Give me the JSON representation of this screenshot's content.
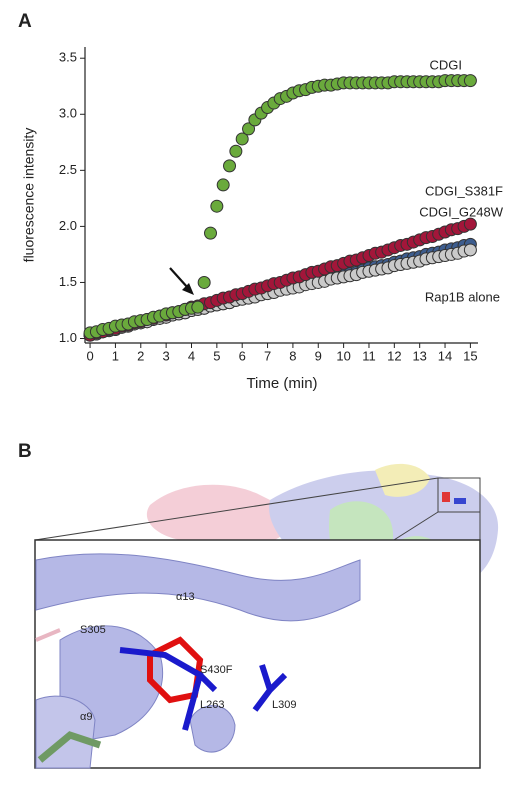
{
  "chart_data": {
    "type": "scatter",
    "panel_label": "A",
    "xlabel": "Time (min)",
    "ylabel": "fluorescence intensity",
    "x": [
      0,
      0.25,
      0.5,
      0.75,
      1,
      1.25,
      1.5,
      1.75,
      2,
      2.25,
      2.5,
      2.75,
      3,
      3.25,
      3.5,
      3.75,
      4,
      4.25,
      4.5,
      4.75,
      5,
      5.25,
      5.5,
      5.75,
      6,
      6.25,
      6.5,
      6.75,
      7,
      7.25,
      7.5,
      7.75,
      8,
      8.25,
      8.5,
      8.75,
      9,
      9.25,
      9.5,
      9.75,
      10,
      10.25,
      10.5,
      10.75,
      11,
      11.25,
      11.5,
      11.75,
      12,
      12.25,
      12.5,
      12.75,
      13,
      13.25,
      13.5,
      13.75,
      14,
      14.25,
      14.5,
      14.75,
      15
    ],
    "series": [
      {
        "name": "CDGI_G248W",
        "color": "#3d5d8f",
        "values": [
          1.03,
          1.04,
          1.06,
          1.07,
          1.08,
          1.1,
          1.11,
          1.13,
          1.14,
          1.15,
          1.17,
          1.18,
          1.19,
          1.21,
          1.22,
          1.23,
          1.25,
          1.26,
          1.27,
          1.29,
          1.3,
          1.31,
          1.32,
          1.34,
          1.36,
          1.37,
          1.38,
          1.4,
          1.41,
          1.42,
          1.44,
          1.45,
          1.46,
          1.47,
          1.49,
          1.5,
          1.52,
          1.53,
          1.55,
          1.56,
          1.57,
          1.58,
          1.59,
          1.61,
          1.63,
          1.64,
          1.65,
          1.66,
          1.68,
          1.69,
          1.71,
          1.72,
          1.73,
          1.75,
          1.76,
          1.77,
          1.79,
          1.8,
          1.81,
          1.83,
          1.84
        ]
      },
      {
        "name": "Rap1B alone",
        "color": "#cacaca",
        "values": [
          1.03,
          1.04,
          1.06,
          1.07,
          1.08,
          1.1,
          1.11,
          1.13,
          1.14,
          1.15,
          1.17,
          1.18,
          1.19,
          1.21,
          1.22,
          1.23,
          1.25,
          1.26,
          1.27,
          1.29,
          1.3,
          1.31,
          1.32,
          1.34,
          1.35,
          1.36,
          1.37,
          1.39,
          1.4,
          1.41,
          1.43,
          1.44,
          1.45,
          1.46,
          1.48,
          1.49,
          1.5,
          1.51,
          1.53,
          1.54,
          1.55,
          1.56,
          1.57,
          1.59,
          1.6,
          1.61,
          1.62,
          1.63,
          1.65,
          1.66,
          1.67,
          1.68,
          1.69,
          1.71,
          1.72,
          1.73,
          1.74,
          1.75,
          1.76,
          1.78,
          1.79
        ]
      },
      {
        "name": "CDGI_S381F",
        "color": "#a3163a",
        "values": [
          1.03,
          1.05,
          1.06,
          1.08,
          1.09,
          1.11,
          1.12,
          1.14,
          1.15,
          1.17,
          1.18,
          1.2,
          1.21,
          1.23,
          1.24,
          1.26,
          1.28,
          1.29,
          1.31,
          1.32,
          1.34,
          1.36,
          1.37,
          1.39,
          1.4,
          1.42,
          1.44,
          1.45,
          1.47,
          1.49,
          1.5,
          1.52,
          1.54,
          1.55,
          1.57,
          1.59,
          1.6,
          1.62,
          1.64,
          1.65,
          1.67,
          1.69,
          1.7,
          1.72,
          1.74,
          1.76,
          1.77,
          1.79,
          1.81,
          1.83,
          1.84,
          1.86,
          1.88,
          1.9,
          1.91,
          1.93,
          1.95,
          1.97,
          1.98,
          2.0,
          2.02
        ]
      },
      {
        "name": "CDGI",
        "color": "#6aaa3c",
        "values": [
          1.05,
          1.06,
          1.08,
          1.09,
          1.11,
          1.12,
          1.13,
          1.15,
          1.16,
          1.17,
          1.19,
          1.2,
          1.22,
          1.23,
          1.24,
          1.26,
          1.27,
          1.28,
          1.5,
          1.94,
          2.18,
          2.37,
          2.54,
          2.67,
          2.78,
          2.87,
          2.95,
          3.01,
          3.06,
          3.1,
          3.14,
          3.16,
          3.19,
          3.21,
          3.22,
          3.24,
          3.25,
          3.26,
          3.26,
          3.27,
          3.28,
          3.28,
          3.28,
          3.28,
          3.28,
          3.28,
          3.28,
          3.28,
          3.29,
          3.29,
          3.29,
          3.29,
          3.29,
          3.29,
          3.29,
          3.29,
          3.3,
          3.3,
          3.3,
          3.3,
          3.3
        ]
      }
    ],
    "xlim": [
      -0.2,
      15.3
    ],
    "ylim": [
      0.96,
      3.6
    ],
    "xticks": [
      0,
      1,
      2,
      3,
      4,
      5,
      6,
      7,
      8,
      9,
      10,
      11,
      12,
      13,
      14,
      15
    ],
    "yticks": [
      {
        "value": 1,
        "label": "1.0"
      },
      1.5,
      {
        "value": 2,
        "label": "2.0"
      },
      2.5,
      {
        "value": 3,
        "label": "3.0"
      },
      3.5
    ]
  },
  "panel_b": {
    "panel_label": "B",
    "labels": [
      "α13",
      "S305",
      "S430F",
      "L263",
      "L309",
      "α9"
    ]
  }
}
